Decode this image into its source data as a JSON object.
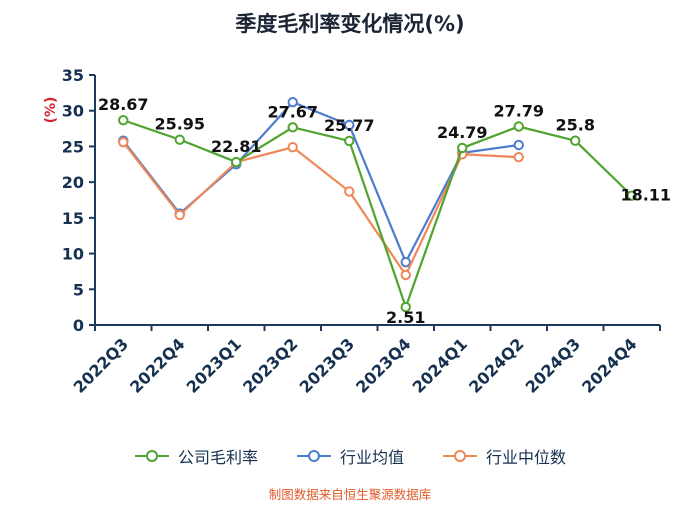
{
  "title": "季度毛利率变化情况(%)",
  "footer": "制图数据来自恒生聚源数据库",
  "colors": {
    "axis": "#1c3a5e",
    "tick_label": "#16304f",
    "data_label": "#111111",
    "y_axis_label": "#d9232e",
    "footer": "#e05a2b",
    "company": "#4fa32f",
    "industry_mean": "#4d7bce",
    "industry_median": "#ef8757"
  },
  "legend": [
    {
      "label": "公司毛利率",
      "color": "#4fa32f"
    },
    {
      "label": "行业均值",
      "color": "#4d7bce"
    },
    {
      "label": "行业中位数",
      "color": "#ef8757"
    }
  ],
  "chart_data": {
    "type": "line",
    "title": "季度毛利率变化情况(%)",
    "categories": [
      "2022Q3",
      "2022Q4",
      "2023Q1",
      "2023Q2",
      "2023Q3",
      "2023Q4",
      "2024Q1",
      "2024Q2",
      "2024Q3",
      "2024Q4"
    ],
    "series": [
      {
        "name": "公司毛利率",
        "color": "#4fa32f",
        "show_labels": true,
        "values": [
          28.67,
          25.95,
          22.81,
          27.67,
          25.77,
          2.51,
          24.79,
          27.79,
          25.8,
          18.11
        ]
      },
      {
        "name": "行业均值",
        "color": "#4d7bce",
        "values": [
          25.8,
          15.6,
          22.5,
          31.2,
          28.0,
          8.8,
          24.1,
          25.2,
          null,
          null
        ]
      },
      {
        "name": "行业中位数",
        "color": "#ef8757",
        "values": [
          25.6,
          15.4,
          22.8,
          24.9,
          18.7,
          7.0,
          23.9,
          23.5,
          null,
          null
        ]
      }
    ],
    "ylim": [
      0,
      35
    ],
    "yticks": [
      0,
      5,
      10,
      15,
      20,
      25,
      30,
      35
    ],
    "ylabel": "(%)",
    "xlabel": "",
    "grid": false,
    "legend_position": "bottom",
    "x_label_rotation": -45,
    "label_offsets": {
      "5": [
        0,
        16
      ],
      "9": [
        14,
        5
      ]
    }
  }
}
